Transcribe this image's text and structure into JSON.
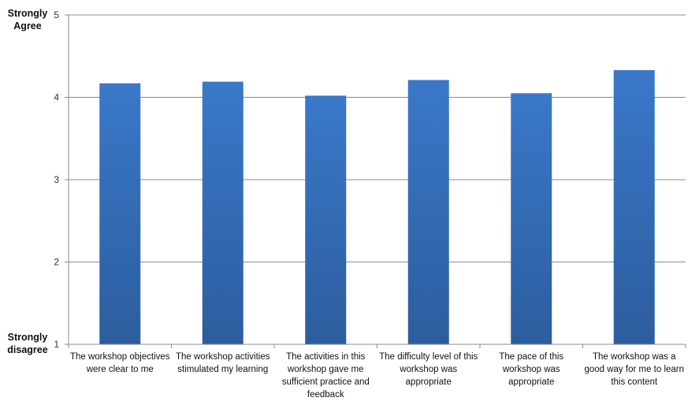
{
  "chart_data": {
    "type": "bar",
    "title": "",
    "xlabel": "",
    "ylabel": "",
    "ylim": [
      1,
      5
    ],
    "yticks": [
      1,
      2,
      3,
      4,
      5
    ],
    "grid": true,
    "bar_color": "#3a78c9",
    "bar_color_dark": "#2c5d9e",
    "y_anchor_labels": {
      "top": "Strongly Agree",
      "bottom": "Strongly disagree"
    },
    "categories": [
      "The workshop objectives were clear to me",
      "The workshop activities stimulated my learning",
      "The activities in this workshop gave me sufficient practice and feedback",
      "The difficulty level of this workshop was appropriate",
      "The pace of this workshop was appropriate",
      "The workshop was a good way for me to learn this content"
    ],
    "values": [
      4.17,
      4.19,
      4.02,
      4.21,
      4.05,
      4.33
    ]
  }
}
